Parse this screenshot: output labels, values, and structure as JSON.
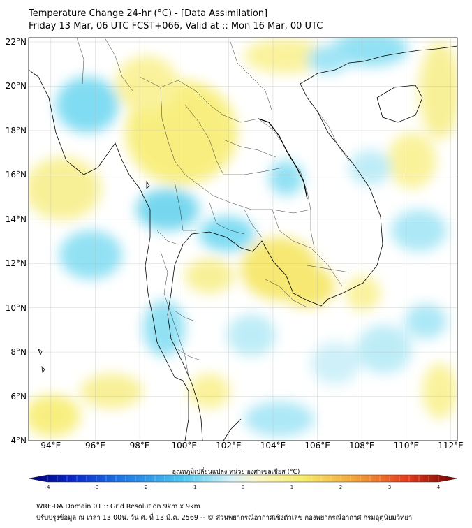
{
  "title": {
    "line1": "Temperature Change 24-hr (°C) - [Data Assimilation]",
    "line2": "Friday 13 Mar, 06 UTC FCST+066, Valid at :: Mon 16 Mar, 00 UTC"
  },
  "map": {
    "lat_labels": [
      "22°N",
      "20°N",
      "18°N",
      "16°N",
      "14°N",
      "12°N",
      "10°N",
      "8°N",
      "6°N",
      "4°N"
    ],
    "lon_labels": [
      "94°E",
      "96°E",
      "98°E",
      "100°E",
      "102°E",
      "104°E",
      "106°E",
      "108°E",
      "110°E",
      "112°E"
    ],
    "lat_range": [
      4,
      22
    ],
    "lon_range": [
      93,
      112.3
    ],
    "colors": {
      "background": "#ffffff",
      "warm": "#f7ec6a",
      "cool": "#5fd0ec",
      "coast": "#000000",
      "grid": "#b8b8b8"
    }
  },
  "colorbar": {
    "label": "อุณหภูมิเปลี่ยนแปลง หน่วย องศาเซลเซียส (°C)",
    "ticks": [
      "-4",
      "-3",
      "-2",
      "-1",
      "0",
      "1",
      "2",
      "3",
      "4"
    ],
    "range": [
      -4,
      4
    ]
  },
  "footer": {
    "line1": "WRF-DA Domain 01 :: Grid Resolution 9km x 9km",
    "line2": "ปรับปรุงข้อมูล ณ เวลา 13:00น. วัน ศ. ที่ 13 มี.ค. 2569 -- © ส่วนพยากรณ์อากาศเชิงตัวเลข กองพยากรณ์อากาศ กรมอุตุนิยมวิทยา"
  }
}
